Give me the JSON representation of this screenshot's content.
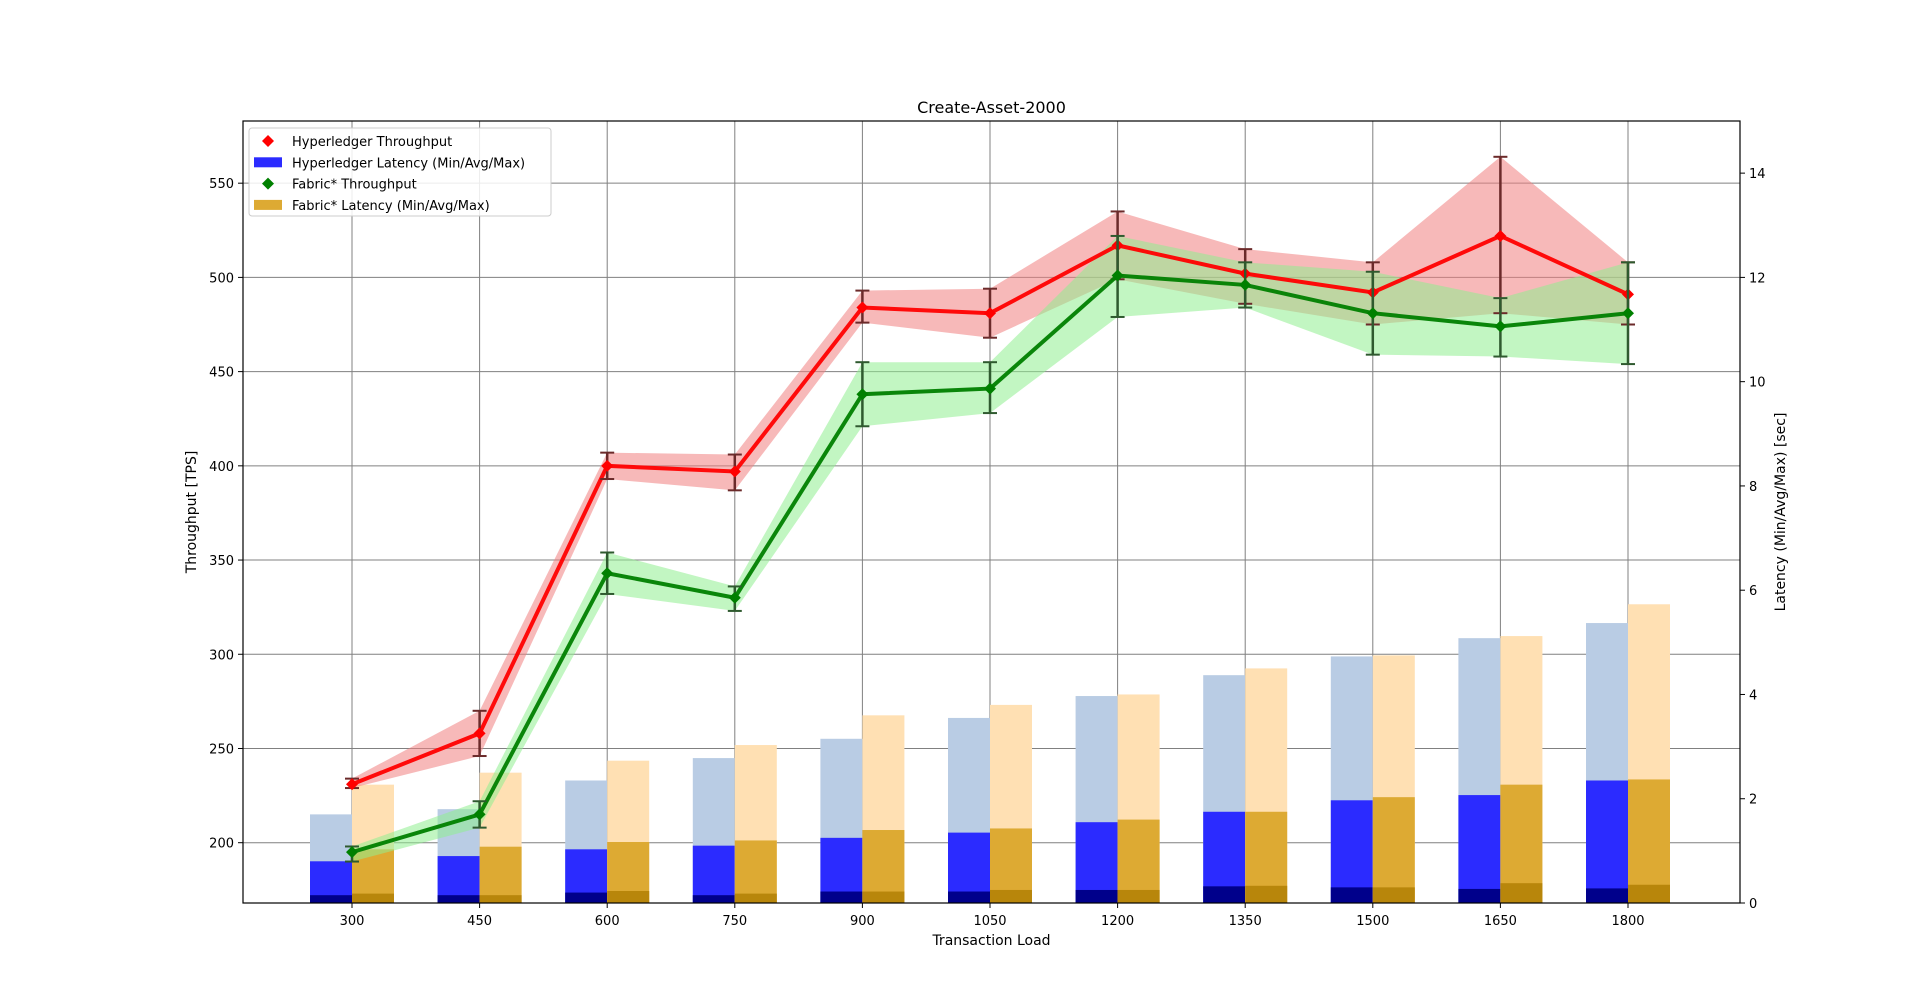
{
  "chart_data": {
    "type": "bar",
    "title": "Create-Asset-2000",
    "xlabel": "Transaction Load",
    "ylabel": "Throughput [TPS]",
    "y2label": "Latency (Min/Avg/Max) [sec]",
    "categories": [
      "300",
      "450",
      "600",
      "750",
      "900",
      "1050",
      "1200",
      "1350",
      "1500",
      "1650",
      "1800"
    ],
    "ylim": [
      168,
      583
    ],
    "yticks": [
      200,
      250,
      300,
      350,
      400,
      450,
      500,
      550
    ],
    "y2lim": [
      0,
      15
    ],
    "y2ticks": [
      0,
      2,
      4,
      6,
      8,
      10,
      12,
      14
    ],
    "grid": true,
    "legend_position": "top-left",
    "throughput_series": [
      {
        "name": "Hyperledger Throughput",
        "color": "#ff0000",
        "band_color": "#f08080",
        "values": [
          231,
          258,
          400,
          397,
          484,
          481,
          517,
          502,
          492,
          522,
          491
        ],
        "err_low": [
          229,
          246,
          393,
          387,
          476,
          468,
          499,
          486,
          475,
          481,
          475
        ],
        "err_high": [
          234,
          270,
          407,
          406,
          493,
          494,
          535,
          515,
          508,
          564,
          508
        ]
      },
      {
        "name": "Fabric* Throughput",
        "color": "#008000",
        "band_color": "#90ee90",
        "values": [
          195,
          215,
          343,
          330,
          438,
          441,
          501,
          496,
          481,
          474,
          481
        ],
        "err_low": [
          190,
          208,
          332,
          323,
          421,
          428,
          479,
          484,
          459,
          458,
          454
        ],
        "err_high": [
          198,
          222,
          354,
          336,
          455,
          455,
          522,
          508,
          503,
          489,
          508
        ]
      }
    ],
    "latency_series": [
      {
        "name": "Hyperledger Latency (Min/Avg/Max)",
        "colors": {
          "min": "#00008b",
          "avg": "#2b2bff",
          "max": "#b9cce4"
        },
        "min": [
          0.15,
          0.15,
          0.2,
          0.15,
          0.22,
          0.22,
          0.25,
          0.32,
          0.3,
          0.27,
          0.28
        ],
        "avg": [
          0.8,
          0.9,
          1.03,
          1.1,
          1.25,
          1.35,
          1.55,
          1.75,
          1.97,
          2.07,
          2.35
        ],
        "max": [
          1.7,
          1.8,
          2.35,
          2.78,
          3.15,
          3.55,
          3.97,
          4.37,
          4.73,
          5.08,
          5.37
        ]
      },
      {
        "name": "Fabric* Latency (Min/Avg/Max)",
        "colors": {
          "min": "#b8860b",
          "avg": "#ddaa33",
          "max": "#ffe0b3"
        },
        "min": [
          0.18,
          0.15,
          0.23,
          0.18,
          0.22,
          0.25,
          0.25,
          0.33,
          0.3,
          0.38,
          0.35
        ],
        "avg": [
          1.03,
          1.08,
          1.17,
          1.2,
          1.4,
          1.43,
          1.6,
          1.75,
          2.03,
          2.27,
          2.37
        ],
        "max": [
          2.27,
          2.5,
          2.73,
          3.03,
          3.6,
          3.8,
          4.0,
          4.5,
          4.75,
          5.12,
          5.73
        ]
      }
    ]
  }
}
